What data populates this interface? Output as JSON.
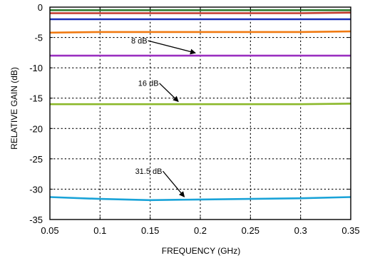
{
  "chart_data": {
    "type": "line",
    "xlabel": "FREQUENCY (GHz)",
    "ylabel": "RELATIVE GAIN (dB)",
    "xlim": [
      0.05,
      0.35
    ],
    "ylim": [
      -35,
      0
    ],
    "xticks": [
      0.05,
      0.1,
      0.15,
      0.2,
      0.25,
      0.3,
      0.35
    ],
    "yticks": [
      0,
      -5,
      -10,
      -15,
      -20,
      -25,
      -30,
      -35
    ],
    "xtick_labels": [
      "0.05",
      "0.1",
      "0.15",
      "0.2",
      "0.25",
      "0.3",
      "0.35"
    ],
    "ytick_labels": [
      "0",
      "-5",
      "-10",
      "-15",
      "-20",
      "-25",
      "-30",
      "-35"
    ],
    "grid": true,
    "grid_style": "dotted",
    "series": [
      {
        "color": "#2e7d32",
        "x": [
          0.05,
          0.1,
          0.15,
          0.2,
          0.25,
          0.3,
          0.35
        ],
        "y": [
          -0.5,
          -0.5,
          -0.5,
          -0.5,
          -0.5,
          -0.5,
          -0.5
        ]
      },
      {
        "color": "#c0392b",
        "x": [
          0.05,
          0.1,
          0.15,
          0.2,
          0.25,
          0.3,
          0.35
        ],
        "y": [
          -1.0,
          -1.0,
          -1.0,
          -1.0,
          -1.0,
          -1.0,
          -0.9
        ]
      },
      {
        "color": "#1a2fb8",
        "x": [
          0.05,
          0.1,
          0.15,
          0.2,
          0.25,
          0.3,
          0.35
        ],
        "y": [
          -2.0,
          -2.0,
          -2.0,
          -2.0,
          -2.0,
          -2.0,
          -2.0
        ]
      },
      {
        "color": "#f07a12",
        "x": [
          0.05,
          0.1,
          0.15,
          0.2,
          0.25,
          0.3,
          0.35
        ],
        "y": [
          -4.2,
          -4.1,
          -4.1,
          -4.1,
          -4.1,
          -4.1,
          -4.0
        ]
      },
      {
        "color": "#9a2fc0",
        "x": [
          0.05,
          0.1,
          0.15,
          0.2,
          0.25,
          0.3,
          0.35
        ],
        "y": [
          -8.0,
          -8.0,
          -8.0,
          -8.0,
          -8.0,
          -8.0,
          -8.0
        ]
      },
      {
        "color": "#8bb82a",
        "x": [
          0.05,
          0.1,
          0.15,
          0.2,
          0.25,
          0.3,
          0.35
        ],
        "y": [
          -16.0,
          -16.0,
          -16.0,
          -16.0,
          -16.0,
          -16.0,
          -15.9
        ]
      },
      {
        "color": "#1aa3d8",
        "x": [
          0.05,
          0.1,
          0.15,
          0.2,
          0.25,
          0.3,
          0.35
        ],
        "y": [
          -31.3,
          -31.6,
          -31.8,
          -31.7,
          -31.6,
          -31.5,
          -31.3
        ]
      }
    ],
    "annotations": [
      {
        "text": "8 dB",
        "text_x": 0.131,
        "text_y": -6.0,
        "arrow_to_x": 0.195,
        "arrow_to_y": -7.9
      },
      {
        "text": "16 dB",
        "text_x": 0.138,
        "text_y": -13.0,
        "arrow_to_x": 0.178,
        "arrow_to_y": -15.9
      },
      {
        "text": "31.5 dB",
        "text_x": 0.135,
        "text_y": -27.5,
        "arrow_to_x": 0.184,
        "arrow_to_y": -31.6
      }
    ]
  }
}
